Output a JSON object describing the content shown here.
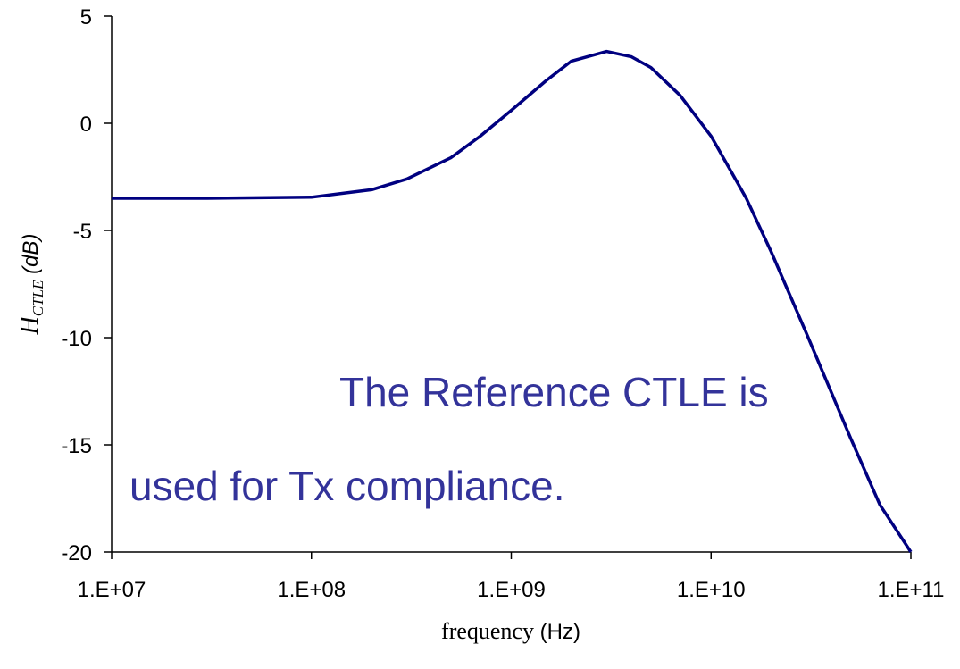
{
  "chart_data": {
    "type": "line",
    "x_label": "frequency (Hz)",
    "x_label_parts": {
      "main": "frequency",
      "unit": "(Hz)"
    },
    "y_label_parts": {
      "main": "H",
      "sub": "CTLE",
      "unit": "(dB)"
    },
    "annotation": [
      "The Reference CTLE is",
      "used for Tx compliance."
    ],
    "x_log": true,
    "xlim": [
      10000000,
      100000000000
    ],
    "xticks": [
      {
        "value": 10000000,
        "label": "1.E+07"
      },
      {
        "value": 100000000,
        "label": "1.E+08"
      },
      {
        "value": 1000000000,
        "label": "1.E+09"
      },
      {
        "value": 10000000000,
        "label": "1.E+10"
      },
      {
        "value": 100000000000,
        "label": "1.E+11"
      }
    ],
    "ylim": [
      -20,
      5
    ],
    "yticks": [
      5,
      0,
      -5,
      -10,
      -15,
      -20
    ],
    "x": [
      10000000,
      30000000,
      100000000,
      200000000,
      300000000,
      500000000,
      700000000,
      1000000000,
      1500000000,
      2000000000,
      3000000000,
      4000000000,
      5000000000,
      7000000000,
      10000000000,
      15000000000,
      20000000000,
      30000000000,
      50000000000,
      70000000000,
      100000000000
    ],
    "series": [
      {
        "color": "#000080",
        "values": [
          -3.5,
          -3.5,
          -3.45,
          -3.1,
          -2.6,
          -1.6,
          -0.6,
          0.6,
          2.0,
          2.9,
          3.35,
          3.1,
          2.6,
          1.3,
          -0.6,
          -3.5,
          -6.0,
          -9.8,
          -14.7,
          -17.8,
          -20
        ]
      }
    ]
  }
}
